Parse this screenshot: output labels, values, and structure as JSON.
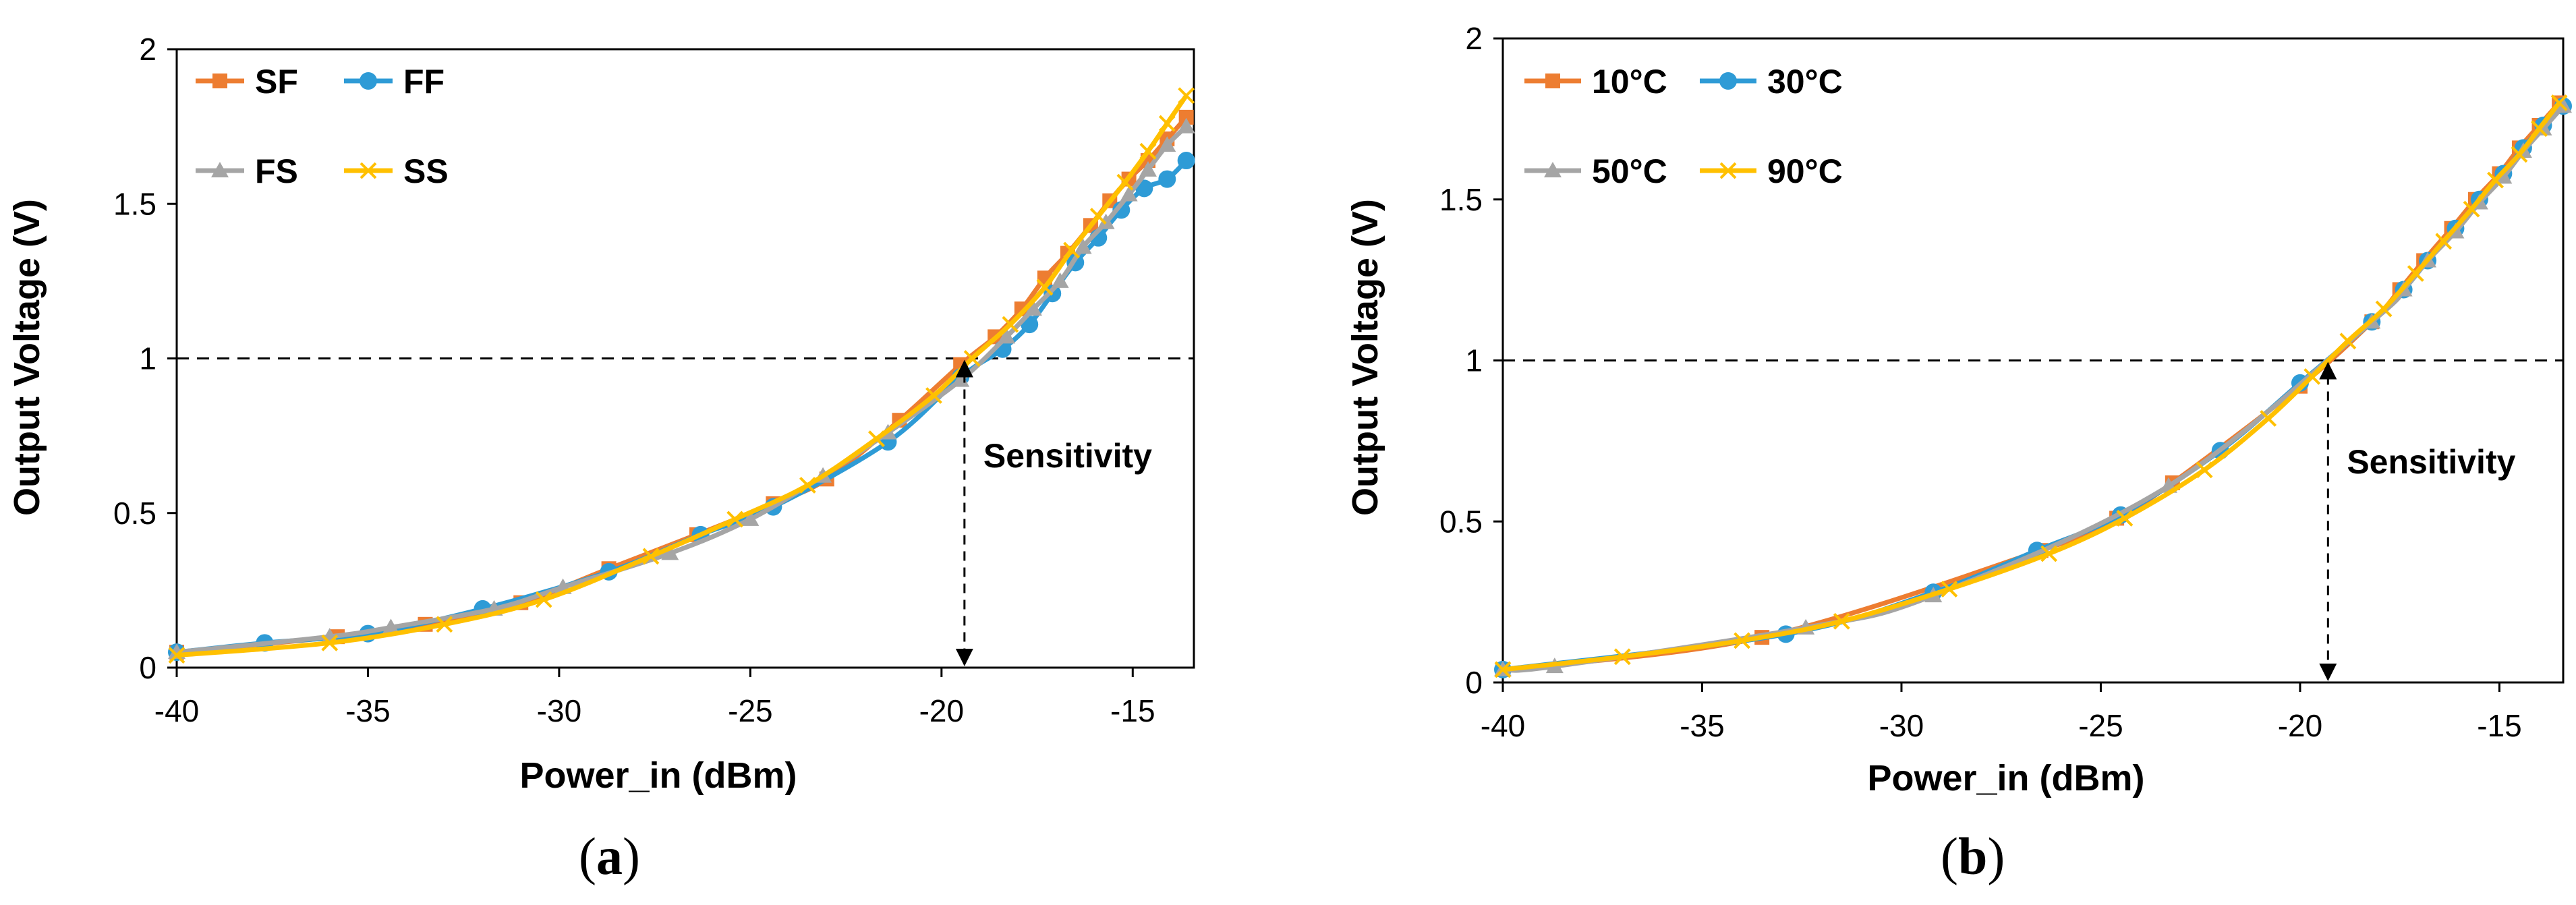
{
  "chart_data": [
    {
      "type": "line",
      "panel_label": "a",
      "xlabel": "Power_in (dBm)",
      "ylabel": "Output  Voltage (V)",
      "xlim": [
        -40,
        -13.4
      ],
      "ylim": [
        0,
        2
      ],
      "xticks": [
        -40,
        -35,
        -30,
        -25,
        -20,
        -15
      ],
      "yticks": [
        0,
        0.5,
        1,
        1.5,
        2
      ],
      "ytick_labels": [
        "0",
        "0.5",
        "1",
        "1.5",
        "2"
      ],
      "grid": false,
      "legend_position": "top-left",
      "threshold_line": 1,
      "annotation": {
        "text": "Sensitivity",
        "x": -19.4
      },
      "series": [
        {
          "name": "SF",
          "color": "#ED7D31",
          "marker": "square",
          "x": [
            -40,
            -35.8,
            -33.5,
            -31,
            -28.7,
            -26.4,
            -24.4,
            -23,
            -21.1,
            -19.5,
            -18.6,
            -17.9,
            -17.3,
            -16.7,
            -16.1,
            -15.6,
            -15.1,
            -14.6,
            -14.1,
            -13.6
          ],
          "y": [
            0.05,
            0.1,
            0.14,
            0.21,
            0.32,
            0.43,
            0.53,
            0.61,
            0.8,
            0.98,
            1.07,
            1.16,
            1.26,
            1.34,
            1.43,
            1.51,
            1.58,
            1.64,
            1.71,
            1.78
          ]
        },
        {
          "name": "FF",
          "color": "#2E9BD6",
          "marker": "circle",
          "x": [
            -40,
            -37.7,
            -35,
            -32,
            -28.7,
            -26.3,
            -24.4,
            -21.4,
            -19.5,
            -18.4,
            -17.7,
            -17.1,
            -16.5,
            -15.9,
            -15.3,
            -14.7,
            -14.1,
            -13.6
          ],
          "y": [
            0.05,
            0.08,
            0.11,
            0.19,
            0.31,
            0.43,
            0.52,
            0.73,
            0.94,
            1.03,
            1.11,
            1.21,
            1.31,
            1.39,
            1.48,
            1.55,
            1.58,
            1.64
          ]
        },
        {
          "name": "FS",
          "color": "#A5A5A5",
          "marker": "triangle",
          "x": [
            -40,
            -36,
            -34.4,
            -31.7,
            -29.9,
            -27.1,
            -25,
            -23.1,
            -21.4,
            -19.5,
            -18.3,
            -17.6,
            -16.9,
            -16.3,
            -15.7,
            -15.1,
            -14.6,
            -14.1,
            -13.6
          ],
          "y": [
            0.05,
            0.1,
            0.13,
            0.19,
            0.26,
            0.37,
            0.48,
            0.62,
            0.76,
            0.93,
            1.07,
            1.16,
            1.25,
            1.36,
            1.44,
            1.53,
            1.61,
            1.69,
            1.75
          ]
        },
        {
          "name": "SS",
          "color": "#FFC000",
          "marker": "x",
          "x": [
            -40,
            -36,
            -33,
            -30.4,
            -27.6,
            -25.4,
            -23.5,
            -21.7,
            -20.2,
            -19.2,
            -18.2,
            -17.3,
            -16.6,
            -15.9,
            -15.2,
            -14.6,
            -14.1,
            -13.6
          ],
          "y": [
            0.04,
            0.08,
            0.14,
            0.22,
            0.36,
            0.48,
            0.59,
            0.74,
            0.88,
            1.0,
            1.11,
            1.23,
            1.35,
            1.46,
            1.57,
            1.67,
            1.76,
            1.85
          ]
        }
      ]
    },
    {
      "type": "line",
      "panel_label": "b",
      "xlabel": "Power_in (dBm)",
      "ylabel": "Output  Voltage (V)",
      "xlim": [
        -40,
        -13.4
      ],
      "ylim": [
        0,
        2
      ],
      "xticks": [
        -40,
        -35,
        -30,
        -25,
        -20,
        -15
      ],
      "yticks": [
        0,
        0.5,
        1,
        1.5,
        2
      ],
      "ytick_labels": [
        "0",
        "0.5",
        "1",
        "1.5",
        "2"
      ],
      "grid": false,
      "legend_position": "top-left",
      "threshold_line": 1,
      "annotation": {
        "text": "Sensitivity",
        "x": -19.3
      },
      "series": [
        {
          "name": "10°C",
          "color": "#ED7D31",
          "marker": "square",
          "x": [
            -40,
            -33.5,
            -26.5,
            -24.6,
            -23.2,
            -20,
            -18.2,
            -17.5,
            -16.9,
            -16.2,
            -15.6,
            -15,
            -14.5,
            -14,
            -13.5
          ],
          "y": [
            0.04,
            0.14,
            0.41,
            0.51,
            0.62,
            0.92,
            1.12,
            1.22,
            1.31,
            1.41,
            1.5,
            1.58,
            1.66,
            1.73,
            1.8
          ]
        },
        {
          "name": "30°C",
          "color": "#2E9BD6",
          "marker": "circle",
          "x": [
            -40,
            -32.9,
            -29.2,
            -26.6,
            -24.5,
            -22,
            -20,
            -18.2,
            -17.4,
            -16.8,
            -16.1,
            -15.5,
            -14.9,
            -14.4,
            -13.9,
            -13.4
          ],
          "y": [
            0.04,
            0.15,
            0.28,
            0.41,
            0.52,
            0.72,
            0.93,
            1.12,
            1.22,
            1.31,
            1.41,
            1.5,
            1.58,
            1.66,
            1.73,
            1.79
          ]
        },
        {
          "name": "50°C",
          "color": "#A5A5A5",
          "marker": "triangle",
          "x": [
            -40,
            -38.7,
            -32.4,
            -29.2,
            -23.3,
            -18.2,
            -17.4,
            -16.8,
            -16.1,
            -15.5,
            -14.9,
            -14.4,
            -13.9,
            -13.4
          ],
          "y": [
            0.04,
            0.05,
            0.17,
            0.27,
            0.61,
            1.12,
            1.22,
            1.31,
            1.4,
            1.49,
            1.57,
            1.65,
            1.72,
            1.79
          ]
        },
        {
          "name": "90°C",
          "color": "#FFC000",
          "marker": "x",
          "x": [
            -40,
            -37,
            -34,
            -31.5,
            -28.8,
            -26.3,
            -24.4,
            -22.4,
            -20.8,
            -19.7,
            -18.8,
            -17.9,
            -17.1,
            -16.4,
            -15.7,
            -15.1,
            -14.5,
            -14,
            -13.5
          ],
          "y": [
            0.04,
            0.08,
            0.13,
            0.19,
            0.29,
            0.4,
            0.51,
            0.66,
            0.82,
            0.95,
            1.06,
            1.16,
            1.27,
            1.37,
            1.47,
            1.56,
            1.64,
            1.72,
            1.8
          ]
        }
      ]
    }
  ]
}
